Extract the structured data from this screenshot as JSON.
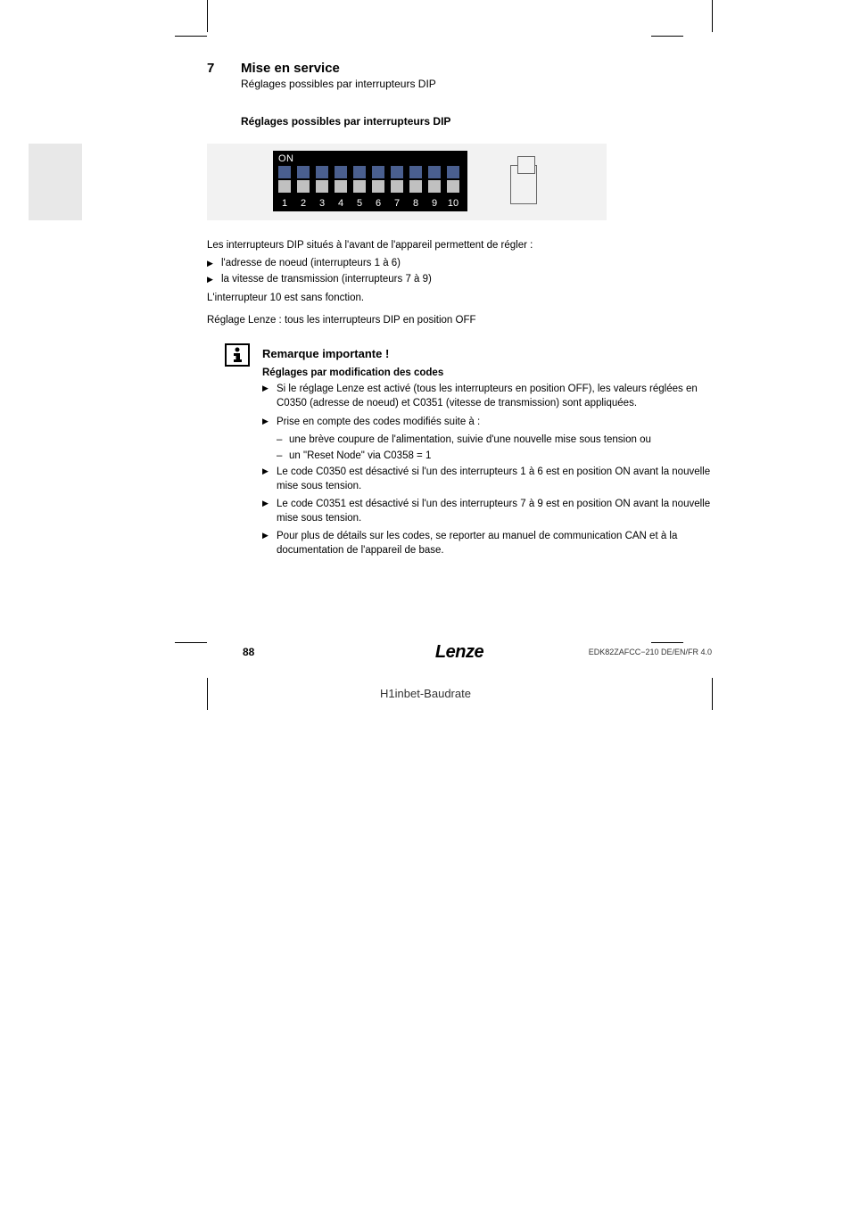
{
  "chapter": {
    "num": "7",
    "title": "Mise en service",
    "sub": "Réglages possibles par interrupteurs DIP"
  },
  "section_title": "Réglages possibles par interrupteurs DIP",
  "dip": {
    "on_label": "ON",
    "numbers": [
      "1",
      "2",
      "3",
      "4",
      "5",
      "6",
      "7",
      "8",
      "9",
      "10"
    ],
    "switch_color_top": "#4a5f8f",
    "switch_color_bot": "#c0c0c0",
    "box_bg": "#000000",
    "figure_bg": "#f2f2f2"
  },
  "intro": "Les interrupteurs DIP situés à l'avant de l'appareil permettent de régler :",
  "bullets_intro": [
    "l'adresse de noeud (interrupteurs 1 à 6)",
    "la vitesse de transmission (interrupteurs 7 à 9)"
  ],
  "line_int10": "L'interrupteur 10 est sans fonction.",
  "line_lenze": "Réglage Lenze : tous les interrupteurs DIP en position OFF",
  "info": {
    "title": "Remarque importante !",
    "subtitle": "Réglages par modification des codes",
    "items": [
      {
        "text": "Si le réglage Lenze est activé (tous les interrupteurs en position OFF), les valeurs réglées en C0350 (adresse de noeud) et C0351 (vitesse de transmission) sont appliquées."
      },
      {
        "text": "Prise en compte des codes modifiés suite à :",
        "dashes": [
          "une brève coupure de l'alimentation, suivie d'une nouvelle mise sous tension ou",
          "un \"Reset Node\" via C0358 = 1"
        ]
      },
      {
        "text": "Le code C0350 est désactivé si l'un des interrupteurs 1 à 6 est en position ON avant la nouvelle mise sous tension."
      },
      {
        "text": "Le code C0351 est désactivé si l'un des interrupteurs 7 à 9 est en position ON avant la nouvelle mise sous tension."
      },
      {
        "text": "Pour plus de détails sur les codes, se reporter au manuel de communication CAN et à la documentation de l'appareil de base."
      }
    ]
  },
  "footer": {
    "page": "88",
    "brand": "Lenze",
    "docid": "EDK82ZAFCC−210   DE/EN/FR   4.0",
    "label": "H1inbet-Baudrate"
  }
}
